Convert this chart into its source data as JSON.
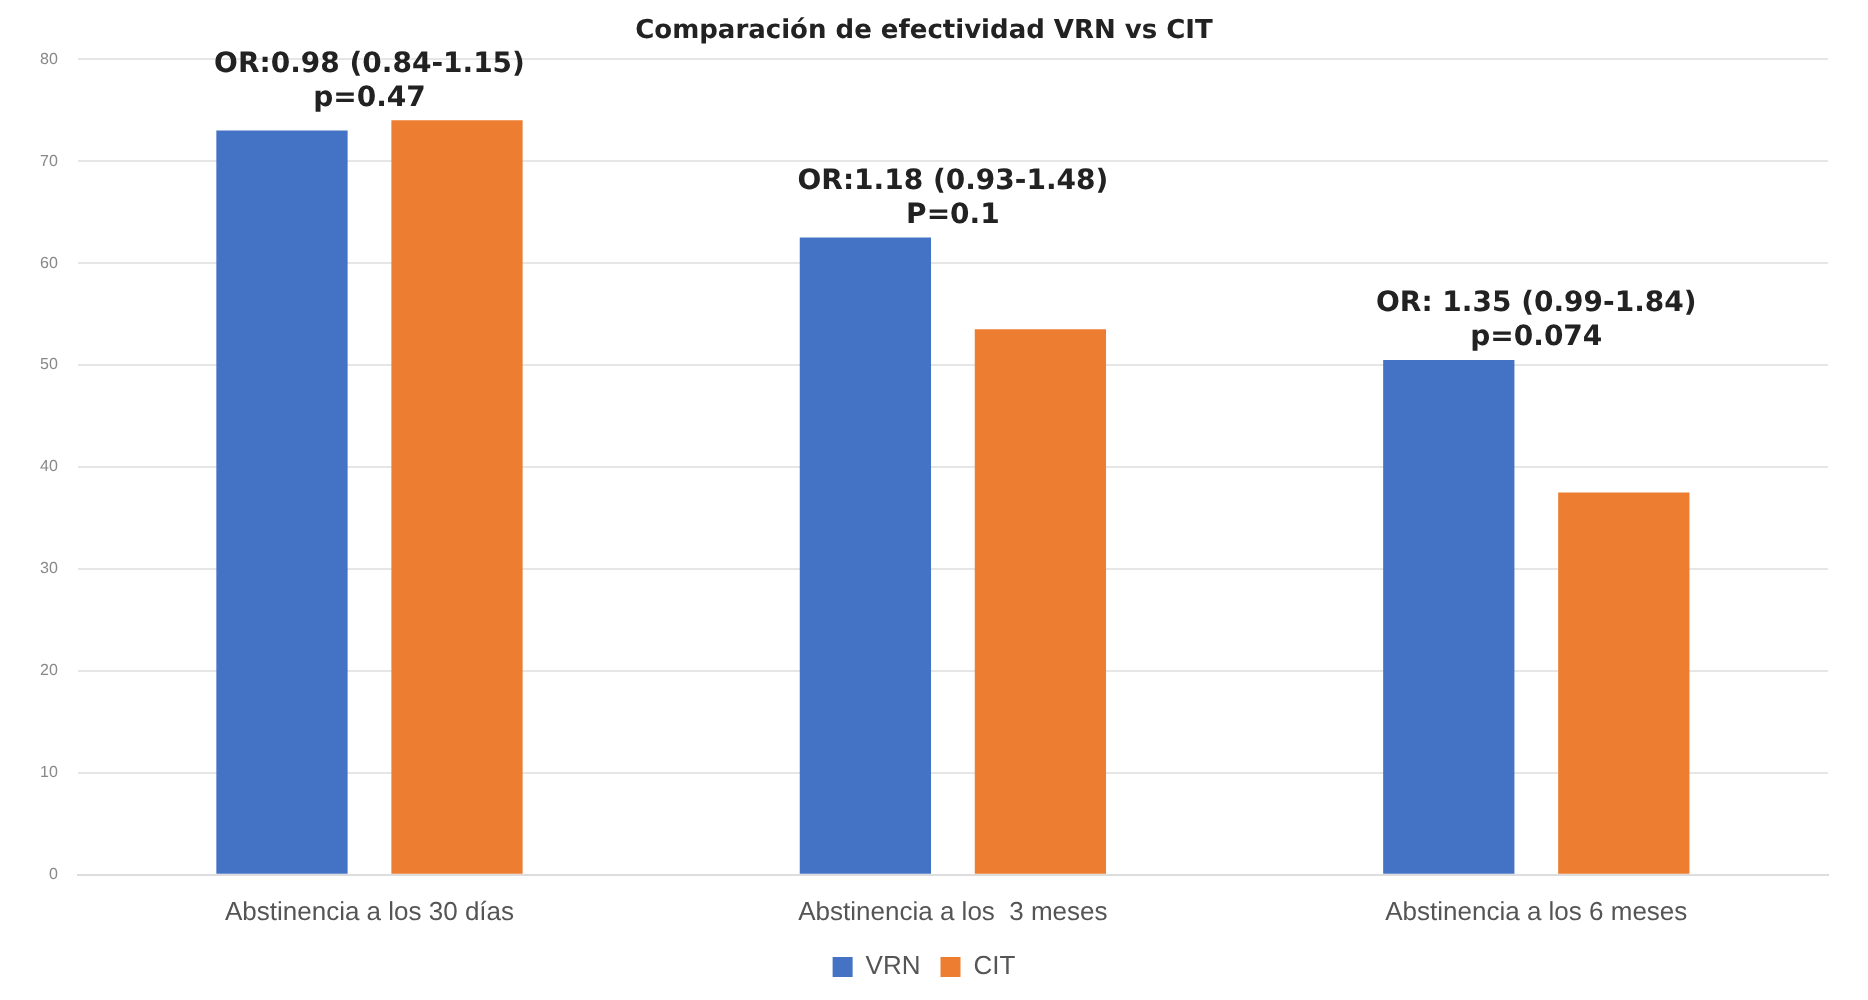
{
  "chart_data": {
    "type": "bar",
    "title": "Comparación de efectividad VRN vs CIT",
    "categories": [
      "Abstinencia a los 30 días",
      "Abstinencia a los  3 meses",
      "Abstinencia a los 6 meses"
    ],
    "series": [
      {
        "name": "VRN",
        "color": "#4472c4",
        "values": [
          73,
          62.5,
          50.5
        ]
      },
      {
        "name": "CIT",
        "color": "#ed7d31",
        "values": [
          74,
          53.5,
          37.5
        ]
      }
    ],
    "ylim": [
      0,
      80
    ],
    "yticks": [
      0,
      10,
      20,
      30,
      40,
      50,
      60,
      70,
      80
    ],
    "grid": "y",
    "legend": "bottom",
    "annotations": [
      "OR:0.98 (0.84-1.15)\np=0.47",
      "OR:1.18 (0.93-1.48)\nP=0.1",
      "OR: 1.35 (0.99-1.84)\np=0.074"
    ]
  }
}
